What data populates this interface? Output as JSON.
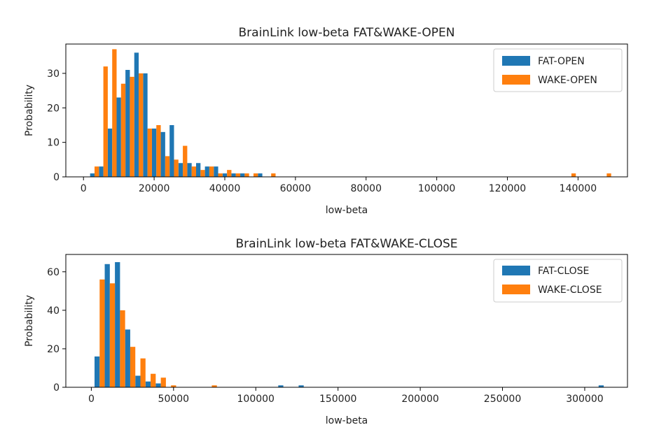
{
  "colors": {
    "fat": "#1f77b4",
    "wake": "#ff7f0e"
  },
  "chart_data": [
    {
      "type": "bar",
      "title": "BrainLink low-beta FAT&WAKE-OPEN",
      "xlabel": "low-beta",
      "ylabel": "Probability",
      "xlim": [
        -5000,
        154000
      ],
      "ylim": [
        0,
        38.5
      ],
      "xticks": [
        0,
        20000,
        40000,
        60000,
        80000,
        100000,
        120000,
        140000
      ],
      "yticks": [
        0,
        10,
        20,
        30
      ],
      "bin_width": 1250,
      "legend_position": "top-right",
      "series": [
        {
          "name": "FAT-OPEN",
          "color": "#1f77b4",
          "x": [
            2500,
            5000,
            7500,
            10000,
            12500,
            15000,
            17500,
            20000,
            22500,
            25000,
            27500,
            30000,
            32500,
            35000,
            37500,
            40000,
            42500,
            45000,
            50000
          ],
          "values": [
            1,
            3,
            14,
            23,
            31,
            36,
            30,
            14,
            13,
            15,
            4,
            4,
            4,
            3,
            3,
            1,
            1,
            1,
            1
          ]
        },
        {
          "name": "WAKE-OPEN",
          "color": "#ff7f0e",
          "x": [
            3750,
            6250,
            8750,
            11250,
            13750,
            16250,
            18750,
            21250,
            23750,
            26250,
            28750,
            31250,
            33750,
            36250,
            38750,
            41250,
            43750,
            46250,
            48750,
            53750,
            138750,
            148750
          ],
          "values": [
            3,
            32,
            37,
            27,
            29,
            30,
            14,
            15,
            6,
            5,
            9,
            3,
            2,
            3,
            1,
            2,
            1,
            1,
            1,
            1,
            1,
            1
          ]
        }
      ]
    },
    {
      "type": "bar",
      "title": "BrainLink low-beta FAT&WAKE-CLOSE",
      "xlabel": "low-beta",
      "ylabel": "Probability",
      "xlim": [
        -15500,
        326000
      ],
      "ylim": [
        0,
        69
      ],
      "xticks": [
        0,
        50000,
        100000,
        150000,
        200000,
        250000,
        300000
      ],
      "yticks": [
        0,
        20,
        40,
        60
      ],
      "bin_width": 3100,
      "legend_position": "top-right",
      "series": [
        {
          "name": "FAT-CLOSE",
          "color": "#1f77b4",
          "x": [
            3500,
            9700,
            15900,
            22100,
            28300,
            34500,
            40700,
            115200,
            127600,
            310000
          ],
          "values": [
            16,
            64,
            65,
            30,
            6,
            3,
            2,
            1,
            1,
            1
          ]
        },
        {
          "name": "WAKE-CLOSE",
          "color": "#ff7f0e",
          "x": [
            6600,
            12800,
            19000,
            25200,
            31400,
            37600,
            43800,
            50000,
            74800
          ],
          "values": [
            56,
            54,
            40,
            21,
            15,
            7,
            5,
            1,
            1
          ]
        }
      ]
    }
  ]
}
